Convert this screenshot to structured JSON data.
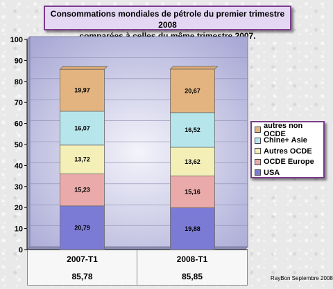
{
  "chart_data": {
    "type": "bar",
    "stacked": true,
    "title": "Consommations mondiales de pétrole du premier trimestre 2008\ncomparées à celles du même trimestre 2007.",
    "categories": [
      "2007-T1",
      "2008-T1"
    ],
    "totals": [
      "85,78",
      "85,85"
    ],
    "series": [
      {
        "name": "USA",
        "values": [
          20.79,
          19.88
        ],
        "labels": [
          "20,79",
          "19,88"
        ],
        "color": "#7b7bd6"
      },
      {
        "name": "OCDE Europe",
        "values": [
          15.23,
          15.16
        ],
        "labels": [
          "15,23",
          "15,16"
        ],
        "color": "#e9aaa9"
      },
      {
        "name": "Autres OCDE",
        "values": [
          13.72,
          13.62
        ],
        "labels": [
          "13,72",
          "13,62"
        ],
        "color": "#f3efb7"
      },
      {
        "name": "Chine+ Asie",
        "values": [
          16.07,
          16.52
        ],
        "labels": [
          "16,07",
          "16,52"
        ],
        "color": "#b6e6ec"
      },
      {
        "name": "autres non OCDE",
        "values": [
          19.97,
          20.67
        ],
        "labels": [
          "19,97",
          "20,67"
        ],
        "color": "#e3b480"
      }
    ],
    "ylim": [
      0,
      100
    ],
    "yticks": [
      0,
      10,
      20,
      30,
      40,
      50,
      60,
      70,
      80,
      90,
      100
    ],
    "grid": true,
    "legend_position": "right",
    "legend_order": [
      "autres non OCDE",
      "Chine+ Asie",
      "Autres OCDE",
      "OCDE Europe",
      "USA"
    ]
  },
  "credit": "RayBon Septembre 2008",
  "colors": {
    "plot_background": "#c7c7e7",
    "frame_border": "#7a3b8c",
    "title_background": "#e3d7f3"
  }
}
